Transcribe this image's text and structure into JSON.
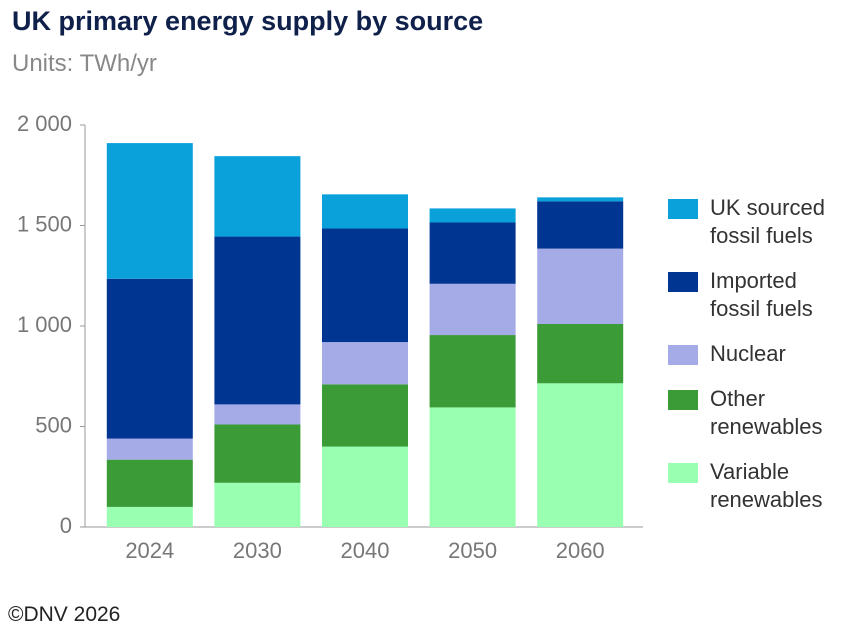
{
  "title": "UK primary energy supply by source",
  "subtitle": "Units: TWh/yr",
  "footer": "©DNV 2026",
  "chart_data": {
    "type": "stacked_bar",
    "categories": [
      "2024",
      "2030",
      "2040",
      "2050",
      "2060"
    ],
    "series": [
      {
        "name": "Variable renewables",
        "color": "#99ffb1",
        "values": [
          100,
          220,
          400,
          595,
          715
        ]
      },
      {
        "name": "Other renewables",
        "color": "#3b9b37",
        "values": [
          235,
          290,
          310,
          360,
          295
        ]
      },
      {
        "name": "Nuclear",
        "color": "#a5abe6",
        "values": [
          105,
          100,
          210,
          255,
          375
        ]
      },
      {
        "name": "Imported fossil fuels",
        "color": "#003591",
        "values": [
          795,
          835,
          565,
          305,
          235
        ]
      },
      {
        "name": "UK sourced fossil fuels",
        "color": "#0aa1db",
        "values": [
          675,
          400,
          170,
          70,
          20
        ]
      }
    ],
    "ylim": [
      0,
      2000
    ],
    "yticks": [
      0,
      500,
      {
        "value": 1000,
        "label": "1 000"
      },
      {
        "value": 1500,
        "label": "1 500"
      },
      {
        "value": 2000,
        "label": "2 000"
      }
    ],
    "legend": "right"
  }
}
